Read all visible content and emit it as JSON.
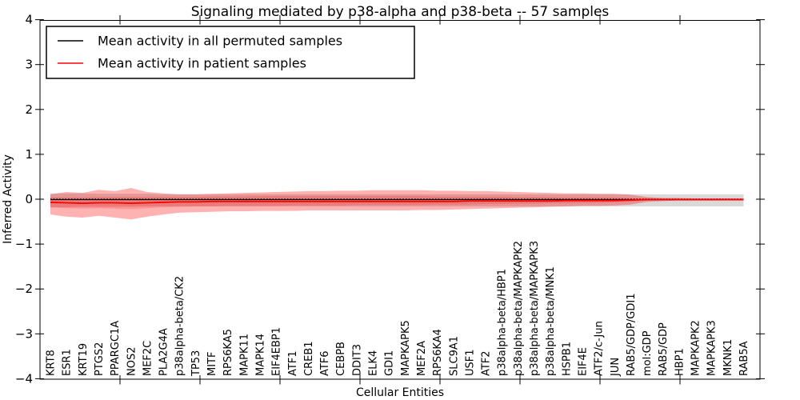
{
  "chart_data": {
    "type": "line",
    "title": "Signaling mediated by p38-alpha and p38-beta -- 57 samples",
    "xlabel": "Cellular Entities",
    "ylabel": "Inferred Activity",
    "ylim": [
      -4,
      4
    ],
    "grid": false,
    "legend_position": "upper left",
    "legend": [
      {
        "label": "Mean activity in all permuted samples",
        "color": "#000000"
      },
      {
        "label": "Mean activity in patient samples",
        "color": "#ff0000"
      }
    ],
    "yticks": [
      {
        "value": 4,
        "label": "4"
      },
      {
        "value": 3,
        "label": "3"
      },
      {
        "value": 2,
        "label": "2"
      },
      {
        "value": 1,
        "label": "1"
      },
      {
        "value": 0,
        "label": "0"
      },
      {
        "value": -1,
        "label": "−1"
      },
      {
        "value": -2,
        "label": "−2"
      },
      {
        "value": -3,
        "label": "−3"
      },
      {
        "value": -4,
        "label": "−4"
      }
    ],
    "categories": [
      "KRT8",
      "ESR1",
      "KRT19",
      "PTGS2",
      "PPARGC1A",
      "NOS2",
      "MEF2C",
      "PLA2G4A",
      "p38alpha-beta/CK2",
      "TP53",
      "MITF",
      "RPS6KA5",
      "MAPK11",
      "MAPK14",
      "EIF4EBP1",
      "ATF1",
      "CREB1",
      "ATF6",
      "CEBPB",
      "DDIT3",
      "ELK4",
      "GDI1",
      "MAPKAPK5",
      "MEF2A",
      "RPS6KA4",
      "SLC9A1",
      "USF1",
      "ATF2",
      "p38alpha-beta/HBP1",
      "p38alpha-beta/MAPKAPK2",
      "p38alpha-beta/MAPKAPK3",
      "p38alpha-beta/MNK1",
      "HSPB1",
      "EIF4E",
      "ATF2/c-Jun",
      "JUN",
      "RAB5/GDP/GDI1",
      "mol:GDP",
      "RAB5/GDP",
      "HBP1",
      "MAPKAPK2",
      "MAPKAPK3",
      "MKNK1",
      "RAB5A"
    ],
    "bands": [
      {
        "name": "permuted-samples-range",
        "color": "#000000",
        "opacity": 0.15,
        "top": [
          0.13,
          0.13,
          0.13,
          0.12,
          0.12,
          0.12,
          0.12,
          0.11,
          0.11,
          0.11,
          0.11,
          0.11,
          0.11,
          0.11,
          0.11,
          0.11,
          0.11,
          0.11,
          0.11,
          0.11,
          0.11,
          0.11,
          0.11,
          0.11,
          0.11,
          0.11,
          0.11,
          0.11,
          0.11,
          0.11,
          0.11,
          0.11,
          0.11,
          0.11,
          0.11,
          0.11,
          0.11,
          0.11,
          0.11,
          0.11,
          0.11,
          0.11,
          0.11,
          0.11
        ],
        "bottom": [
          -0.18,
          -0.18,
          -0.17,
          -0.17,
          -0.17,
          -0.17,
          -0.16,
          -0.16,
          -0.16,
          -0.16,
          -0.16,
          -0.16,
          -0.16,
          -0.16,
          -0.16,
          -0.16,
          -0.16,
          -0.16,
          -0.16,
          -0.16,
          -0.16,
          -0.16,
          -0.16,
          -0.16,
          -0.16,
          -0.16,
          -0.16,
          -0.16,
          -0.16,
          -0.16,
          -0.16,
          -0.16,
          -0.16,
          -0.16,
          -0.16,
          -0.16,
          -0.16,
          -0.16,
          -0.16,
          -0.16,
          -0.16,
          -0.16,
          -0.16,
          -0.16
        ]
      },
      {
        "name": "patient-samples-outer-range",
        "color": "#ff0000",
        "opacity": 0.3,
        "top": [
          0.11,
          0.16,
          0.14,
          0.21,
          0.18,
          0.25,
          0.16,
          0.13,
          0.11,
          0.11,
          0.12,
          0.13,
          0.14,
          0.15,
          0.16,
          0.17,
          0.18,
          0.18,
          0.19,
          0.19,
          0.2,
          0.2,
          0.2,
          0.2,
          0.19,
          0.19,
          0.18,
          0.18,
          0.17,
          0.16,
          0.15,
          0.14,
          0.13,
          0.13,
          0.12,
          0.12,
          0.1,
          0.05,
          0.03,
          0.03,
          0.02,
          0.02,
          0.02,
          0.02
        ],
        "bottom": [
          -0.34,
          -0.39,
          -0.41,
          -0.37,
          -0.41,
          -0.45,
          -0.39,
          -0.34,
          -0.3,
          -0.29,
          -0.28,
          -0.27,
          -0.27,
          -0.26,
          -0.26,
          -0.26,
          -0.25,
          -0.25,
          -0.25,
          -0.25,
          -0.25,
          -0.25,
          -0.25,
          -0.24,
          -0.24,
          -0.23,
          -0.22,
          -0.21,
          -0.2,
          -0.19,
          -0.18,
          -0.17,
          -0.16,
          -0.15,
          -0.15,
          -0.14,
          -0.12,
          -0.06,
          -0.04,
          -0.03,
          -0.03,
          -0.03,
          -0.02,
          -0.02
        ]
      },
      {
        "name": "patient-samples-inner-range",
        "color": "#ff0000",
        "opacity": 0.18,
        "top": [
          0.04,
          0.04,
          0.04,
          0.05,
          0.05,
          0.05,
          0.05,
          0.05,
          0.05,
          0.05,
          0.06,
          0.06,
          0.06,
          0.07,
          0.07,
          0.07,
          0.07,
          0.07,
          0.07,
          0.07,
          0.07,
          0.07,
          0.07,
          0.07,
          0.06,
          0.06,
          0.06,
          0.06,
          0.06,
          0.05,
          0.05,
          0.05,
          0.04,
          0.04,
          0.04,
          0.04,
          0.03,
          0.02,
          0.01,
          0.01,
          0.01,
          0.01,
          0.01,
          0.01
        ],
        "bottom": [
          -0.18,
          -0.2,
          -0.21,
          -0.2,
          -0.21,
          -0.22,
          -0.2,
          -0.18,
          -0.17,
          -0.16,
          -0.16,
          -0.15,
          -0.15,
          -0.15,
          -0.15,
          -0.14,
          -0.14,
          -0.14,
          -0.14,
          -0.13,
          -0.13,
          -0.13,
          -0.13,
          -0.13,
          -0.12,
          -0.12,
          -0.12,
          -0.11,
          -0.11,
          -0.1,
          -0.1,
          -0.09,
          -0.09,
          -0.08,
          -0.08,
          -0.07,
          -0.06,
          -0.03,
          -0.02,
          -0.02,
          -0.02,
          -0.01,
          -0.01,
          -0.01
        ]
      }
    ],
    "series": [
      {
        "name": "Mean activity in all permuted samples",
        "color": "#000000",
        "linestyle": "solid",
        "width": 1.1,
        "values": [
          -0.01,
          -0.01,
          -0.01,
          -0.01,
          -0.01,
          -0.01,
          -0.01,
          -0.01,
          -0.01,
          -0.01,
          -0.01,
          -0.01,
          -0.01,
          -0.01,
          -0.01,
          -0.01,
          -0.01,
          -0.01,
          -0.01,
          -0.01,
          -0.01,
          -0.01,
          -0.01,
          -0.01,
          -0.01,
          -0.01,
          -0.01,
          -0.01,
          -0.01,
          -0.01,
          -0.01,
          -0.01,
          -0.01,
          -0.01,
          -0.01,
          -0.01,
          -0.01,
          -0.01,
          -0.01,
          -0.01,
          -0.01,
          -0.01,
          -0.01,
          -0.01
        ]
      },
      {
        "name": "zero-reference",
        "color": "#000000",
        "linestyle": "dotted",
        "width": 1.5,
        "values": [
          0,
          0,
          0,
          0,
          0,
          0,
          0,
          0,
          0,
          0,
          0,
          0,
          0,
          0,
          0,
          0,
          0,
          0,
          0,
          0,
          0,
          0,
          0,
          0,
          0,
          0,
          0,
          0,
          0,
          0,
          0,
          0,
          0,
          0,
          0,
          0,
          0,
          0,
          0,
          0,
          0,
          0,
          0,
          0
        ]
      },
      {
        "name": "Mean activity in patient samples",
        "color": "#ff0000",
        "linestyle": "solid",
        "width": 1.8,
        "values": [
          -0.07,
          -0.08,
          -0.09,
          -0.08,
          -0.08,
          -0.09,
          -0.08,
          -0.07,
          -0.06,
          -0.06,
          -0.05,
          -0.05,
          -0.05,
          -0.05,
          -0.05,
          -0.05,
          -0.05,
          -0.05,
          -0.05,
          -0.05,
          -0.05,
          -0.05,
          -0.05,
          -0.05,
          -0.05,
          -0.05,
          -0.04,
          -0.04,
          -0.04,
          -0.04,
          -0.04,
          -0.04,
          -0.03,
          -0.03,
          -0.03,
          -0.03,
          -0.02,
          -0.01,
          -0.01,
          -0.01,
          -0.01,
          -0.01,
          -0.01,
          -0.01
        ]
      }
    ]
  }
}
